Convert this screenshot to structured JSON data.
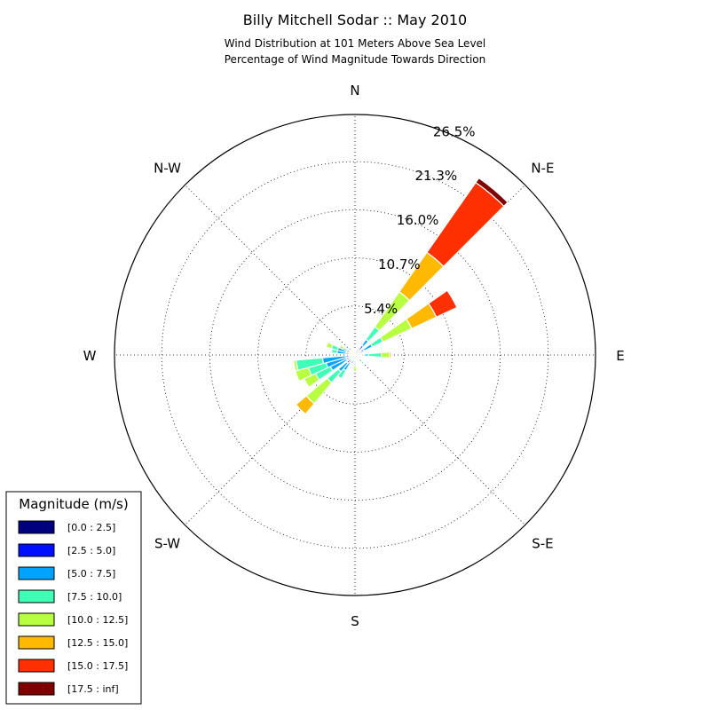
{
  "chart_data": {
    "type": "windrose",
    "title": "Billy Mitchell Sodar :: May 2010",
    "subtitle_lines": [
      "Wind Distribution at 101 Meters Above Sea Level",
      "Percentage of Wind Magnitude Towards Direction"
    ],
    "directions": [
      {
        "label": "N",
        "angle": 0
      },
      {
        "label": "N-E",
        "angle": 45
      },
      {
        "label": "E",
        "angle": 90
      },
      {
        "label": "S-E",
        "angle": 135
      },
      {
        "label": "S",
        "angle": 180
      },
      {
        "label": "S-W",
        "angle": 225
      },
      {
        "label": "W",
        "angle": 270
      },
      {
        "label": "N-W",
        "angle": 315
      }
    ],
    "radial_ticks": [
      5.4,
      10.7,
      16.0,
      21.3,
      26.5
    ],
    "radial_tick_labels": [
      "5.4%",
      "10.7%",
      "16.0%",
      "21.3%",
      "26.5%"
    ],
    "radial_max": 26.5,
    "grid": true,
    "legend": {
      "title": "Magnitude (m/s)",
      "position": "bottom-left",
      "bins": [
        {
          "label": "[0.0 : 2.5]",
          "color": "#00007f"
        },
        {
          "label": "[2.5 : 5.0]",
          "color": "#0010ff"
        },
        {
          "label": "[5.0 : 7.5]",
          "color": "#00a4ff"
        },
        {
          "label": "[7.5 : 10.0]",
          "color": "#40ffb7"
        },
        {
          "label": "[10.0 : 12.5]",
          "color": "#b7ff40"
        },
        {
          "label": "[12.5 : 15.0]",
          "color": "#ffb900"
        },
        {
          "label": "[15.0 : 17.5]",
          "color": "#ff3000"
        },
        {
          "label": "[17.5 : inf]",
          "color": "#7f0000"
        }
      ]
    },
    "sector_width_deg": 10,
    "sectors": [
      {
        "direction_deg": 0,
        "values": [
          0.3,
          0.4,
          0.0,
          0.0,
          0.0,
          0.0,
          0.0,
          0.0
        ]
      },
      {
        "direction_deg": 10,
        "values": [
          0.4,
          0.0,
          0.0,
          0.0,
          0.0,
          0.0,
          0.0,
          0.0
        ]
      },
      {
        "direction_deg": 20,
        "values": [
          0.4,
          0.0,
          0.0,
          0.0,
          0.0,
          0.0,
          0.0,
          0.0
        ]
      },
      {
        "direction_deg": 30,
        "values": [
          0.5,
          0.4,
          0.0,
          0.0,
          0.0,
          0.0,
          0.0,
          0.0
        ]
      },
      {
        "direction_deg": 40,
        "values": [
          0.5,
          0.8,
          0.8,
          1.7,
          4.7,
          5.3,
          9.4,
          0.6
        ]
      },
      {
        "direction_deg": 50,
        "values": [
          0.5,
          0.0,
          0.0,
          0.0,
          0.0,
          0.0,
          0.0,
          0.0
        ]
      },
      {
        "direction_deg": 60,
        "values": [
          0.5,
          0.6,
          1.0,
          1.3,
          3.5,
          3.0,
          2.5,
          0.0
        ]
      },
      {
        "direction_deg": 70,
        "values": [
          0.5,
          0.4,
          0.0,
          0.0,
          0.0,
          0.0,
          0.0,
          0.0
        ]
      },
      {
        "direction_deg": 80,
        "values": [
          0.4,
          0.0,
          0.0,
          0.0,
          0.0,
          0.0,
          0.0,
          0.0
        ]
      },
      {
        "direction_deg": 90,
        "values": [
          0.4,
          0.6,
          0.5,
          1.4,
          0.9,
          0.2,
          0.0,
          0.0
        ]
      },
      {
        "direction_deg": 110,
        "values": [
          0.4,
          0.0,
          0.0,
          0.0,
          0.0,
          0.0,
          0.0,
          0.0
        ]
      },
      {
        "direction_deg": 120,
        "values": [
          0.4,
          0.4,
          0.0,
          0.0,
          0.0,
          0.0,
          0.0,
          0.0
        ]
      },
      {
        "direction_deg": 135,
        "values": [
          0.4,
          0.6,
          0.0,
          0.3,
          0.0,
          0.0,
          0.0,
          0.0
        ]
      },
      {
        "direction_deg": 160,
        "values": [
          0.4,
          0.0,
          0.0,
          0.0,
          0.0,
          0.0,
          0.0,
          0.0
        ]
      },
      {
        "direction_deg": 180,
        "values": [
          0.4,
          0.5,
          0.0,
          0.3,
          0.6,
          0.0,
          0.0,
          0.0
        ]
      },
      {
        "direction_deg": 200,
        "values": [
          0.4,
          0.6,
          0.0,
          0.0,
          0.0,
          0.0,
          0.0,
          0.0
        ]
      },
      {
        "direction_deg": 215,
        "values": [
          0.4,
          0.6,
          1.0,
          1.0,
          0.0,
          0.0,
          0.0,
          0.0
        ]
      },
      {
        "direction_deg": 225,
        "values": [
          0.4,
          0.8,
          1.2,
          1.6,
          3.0,
          1.5,
          0.0,
          0.0
        ]
      },
      {
        "direction_deg": 240,
        "values": [
          0.4,
          0.6,
          2.0,
          1.8,
          1.4,
          0.0,
          0.0,
          0.0
        ]
      },
      {
        "direction_deg": 250,
        "values": [
          0.4,
          0.6,
          2.3,
          2.0,
          1.5,
          0.0,
          0.0,
          0.0
        ]
      },
      {
        "direction_deg": 260,
        "values": [
          0.4,
          0.6,
          2.6,
          2.9,
          0.3,
          0.0,
          0.0,
          0.0
        ]
      },
      {
        "direction_deg": 280,
        "values": [
          0.4,
          0.6,
          1.0,
          0.6,
          0.0,
          0.0,
          0.0,
          0.0
        ]
      },
      {
        "direction_deg": 290,
        "values": [
          0.4,
          0.6,
          1.0,
          0.7,
          0.6,
          0.0,
          0.0,
          0.0
        ]
      },
      {
        "direction_deg": 300,
        "values": [
          0.4,
          0.6,
          0.0,
          0.5,
          0.4,
          0.0,
          0.0,
          0.0
        ]
      },
      {
        "direction_deg": 320,
        "values": [
          0.4,
          0.6,
          0.0,
          0.0,
          0.0,
          0.0,
          0.0,
          0.0
        ]
      },
      {
        "direction_deg": 340,
        "values": [
          0.4,
          0.3,
          0.0,
          0.0,
          0.0,
          0.0,
          0.0,
          0.0
        ]
      }
    ]
  }
}
